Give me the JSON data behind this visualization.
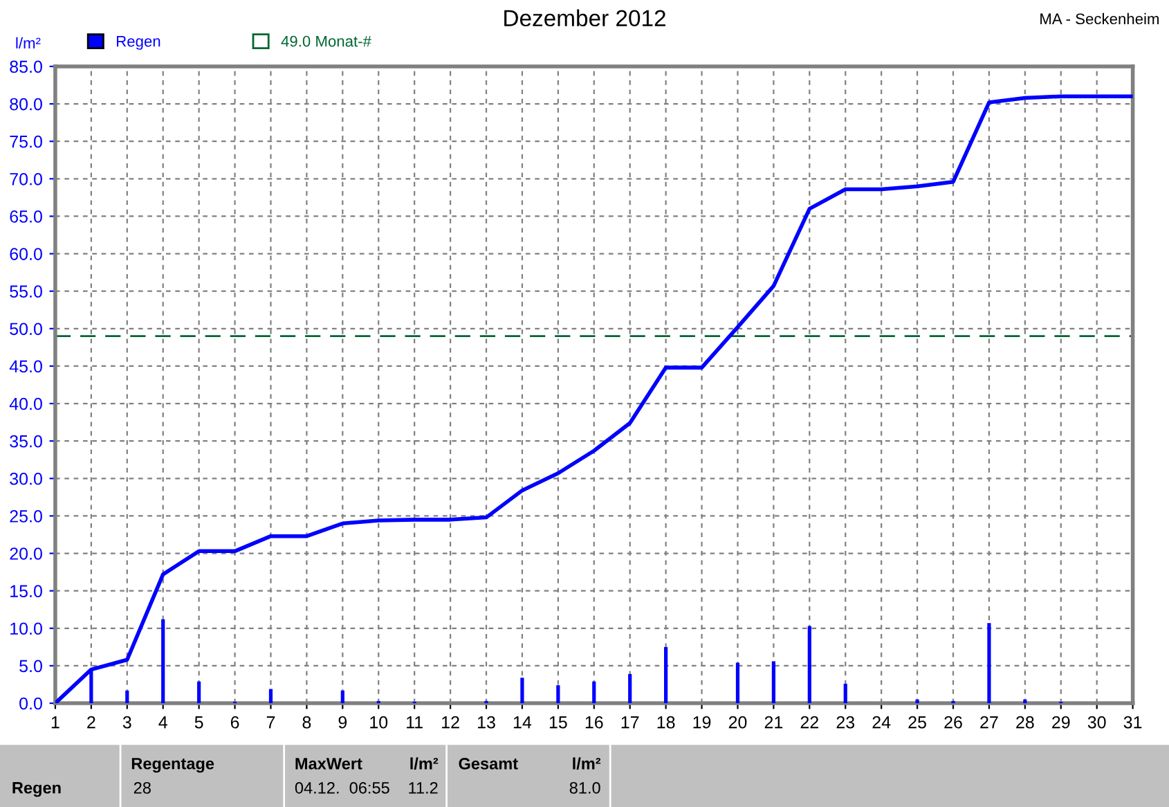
{
  "chart_data": {
    "type": "line",
    "title": "Dezember 2012",
    "ylabel": "l/m²",
    "xlim": [
      1,
      31
    ],
    "xticks": [
      1,
      2,
      3,
      4,
      5,
      6,
      7,
      8,
      9,
      10,
      11,
      12,
      13,
      14,
      15,
      16,
      17,
      18,
      19,
      20,
      21,
      22,
      23,
      24,
      25,
      26,
      27,
      28,
      29,
      30,
      31
    ],
    "ylim": [
      0,
      85
    ],
    "yticks": [
      {
        "value": 0,
        "label": "0.0"
      },
      {
        "value": 5,
        "label": "5.0"
      },
      {
        "value": 10,
        "label": "10.0"
      },
      {
        "value": 15,
        "label": "15.0"
      },
      {
        "value": 20,
        "label": "20.0"
      },
      {
        "value": 25,
        "label": "25.0"
      },
      {
        "value": 30,
        "label": "30.0"
      },
      {
        "value": 35,
        "label": "35.0"
      },
      {
        "value": 40,
        "label": "40.0"
      },
      {
        "value": 45,
        "label": "45.0"
      },
      {
        "value": 50,
        "label": "50.0"
      },
      {
        "value": 55,
        "label": "55.0"
      },
      {
        "value": 60,
        "label": "60.0"
      },
      {
        "value": 65,
        "label": "65.0"
      },
      {
        "value": 70,
        "label": "70.0"
      },
      {
        "value": 75,
        "label": "75.0"
      },
      {
        "value": 80,
        "label": "80.0"
      },
      {
        "value": 85,
        "label": "85.0"
      }
    ],
    "grid": true,
    "legend": "top left",
    "line_style": "solid",
    "series": [
      {
        "name": "Regen",
        "type": "bar",
        "color": "#0000ff",
        "x": [
          2,
          3,
          4,
          5,
          6,
          7,
          9,
          10,
          11,
          13,
          14,
          15,
          16,
          17,
          18,
          20,
          21,
          22,
          23,
          25,
          26,
          27,
          28,
          29
        ],
        "values": [
          4.4,
          1.7,
          11.2,
          2.9,
          0.2,
          1.9,
          1.7,
          0.3,
          0.2,
          0.3,
          3.4,
          2.4,
          2.9,
          3.9,
          7.5,
          5.4,
          5.6,
          10.3,
          2.6,
          0.5,
          0.3,
          10.7,
          0.5,
          0.2
        ]
      },
      {
        "color": "#0000ff",
        "x": [
          1,
          2,
          3,
          4,
          5,
          6,
          7,
          8,
          9,
          10,
          11,
          12,
          13,
          14,
          15,
          16,
          17,
          18,
          19,
          20,
          21,
          22,
          23,
          24,
          25,
          26,
          27,
          28,
          29,
          30,
          31
        ],
        "values": [
          0,
          4.5,
          5.8,
          17.2,
          20.3,
          20.3,
          22.3,
          22.3,
          24.0,
          24.4,
          24.5,
          24.5,
          24.8,
          28.4,
          30.7,
          33.7,
          37.4,
          44.8,
          44.8,
          50.2,
          55.7,
          66.0,
          68.6,
          68.6,
          69.0,
          69.6,
          80.2,
          80.8,
          81.0,
          81.0,
          81.0
        ]
      }
    ],
    "ref_lines": [
      {
        "axis": "y",
        "value": 49.0,
        "label": "49.0 Monat-#",
        "color": "#006633",
        "line_style": "dashed"
      }
    ],
    "annotations": [
      "MA - Seckenheim",
      "Regen",
      "Regentage",
      "28",
      "MaxWert",
      "l/m²",
      "04.12.  06:55",
      "11.2",
      "Gesamt",
      "l/m²",
      "81.0"
    ]
  }
}
